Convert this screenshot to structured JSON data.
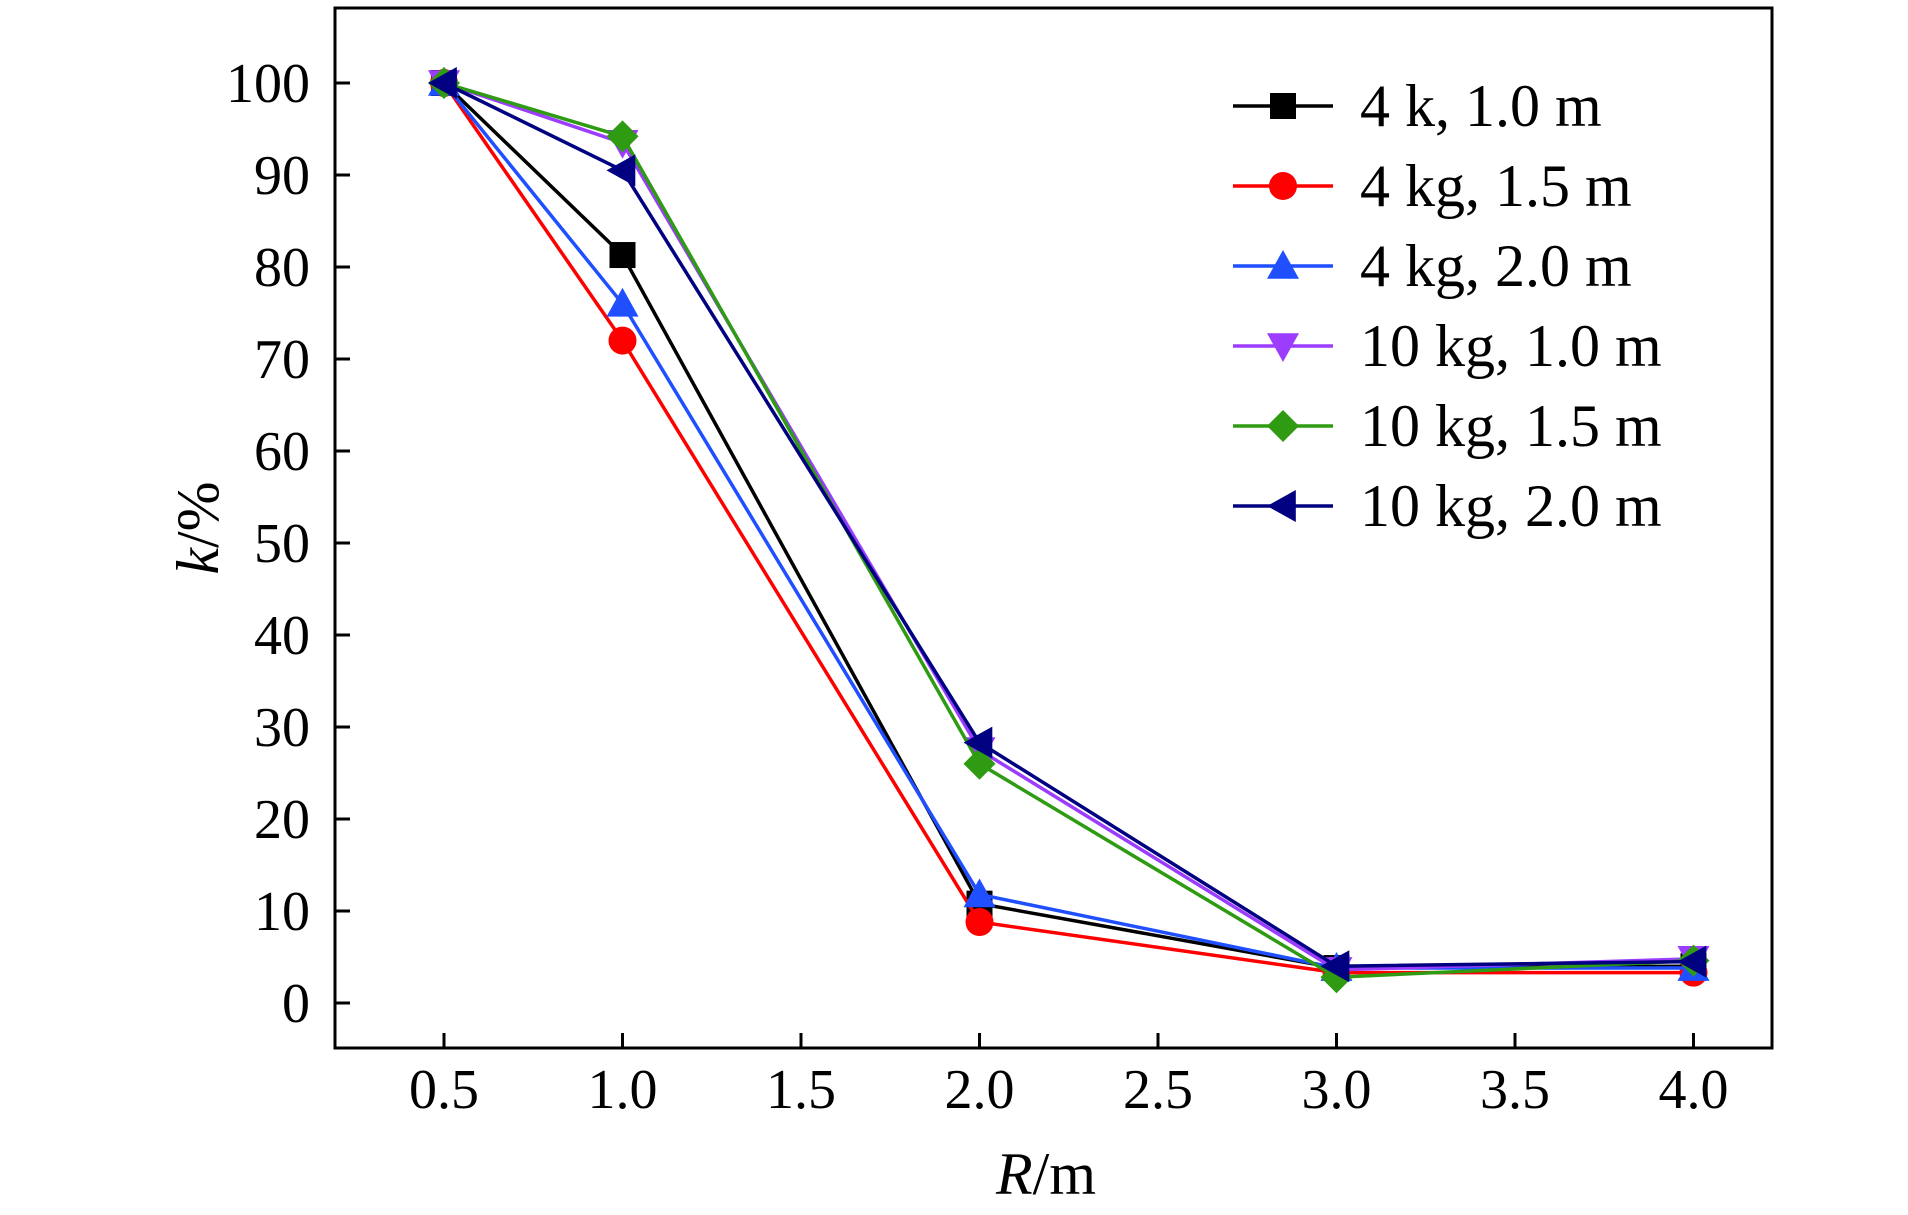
{
  "chart_data": {
    "type": "line",
    "title": "",
    "xlabel": "/m",
    "xlabel_var": "R",
    "ylabel": "/%",
    "ylabel_var": "k",
    "x_categories": [
      "0.5",
      "1.0",
      "1.5",
      "2.0",
      "2.5",
      "3.0",
      "3.5",
      "4.0"
    ],
    "x_data_points": [
      "0.5",
      "1.0",
      "2.0",
      "3.0",
      "4.0"
    ],
    "y_ticks": [
      "0",
      "10",
      "20",
      "30",
      "40",
      "50",
      "60",
      "70",
      "80",
      "90",
      "100"
    ],
    "ylim": [
      -5,
      108
    ],
    "grid": false,
    "legend_position": "top-right",
    "series": [
      {
        "name": "4 k, 1.0 m",
        "color": "#000000",
        "marker": "square",
        "values": [
          100,
          81.3,
          10.8,
          3.8,
          4.0
        ]
      },
      {
        "name": "4 kg, 1.5 m",
        "color": "#ff0000",
        "marker": "circle",
        "values": [
          100,
          72.0,
          8.8,
          3.3,
          3.3
        ]
      },
      {
        "name": "4 kg, 2.0 m",
        "color": "#1f4fff",
        "marker": "triangle-up",
        "values": [
          100,
          76.0,
          11.8,
          3.8,
          3.8
        ]
      },
      {
        "name": "10 kg, 1.0 m",
        "color": "#9b3cff",
        "marker": "triangle-down",
        "values": [
          100,
          93.5,
          27.5,
          3.6,
          4.8
        ]
      },
      {
        "name": "10 kg, 1.5 m",
        "color": "#2e9b12",
        "marker": "diamond",
        "values": [
          100,
          94.2,
          26.0,
          2.8,
          4.6
        ]
      },
      {
        "name": "10 kg, 2.0 m",
        "color": "#000080",
        "marker": "triangle-left",
        "values": [
          100,
          90.5,
          28.3,
          4.0,
          4.5
        ]
      }
    ]
  }
}
